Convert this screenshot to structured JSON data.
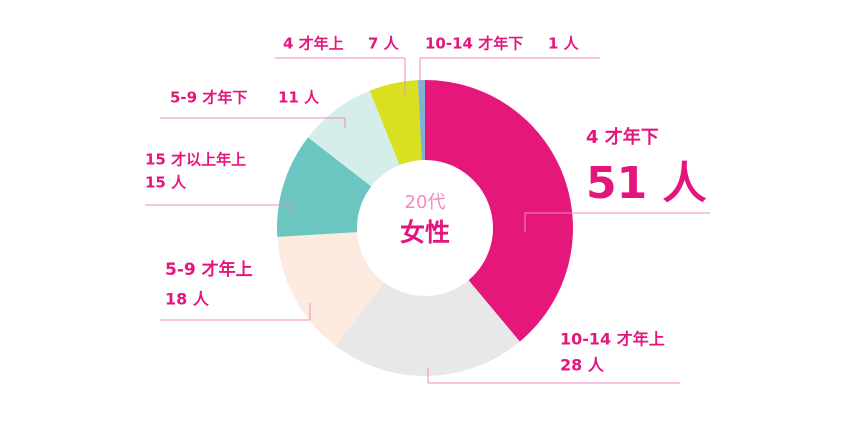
{
  "chart_data": {
    "type": "donut",
    "subtitle": "20代",
    "title": "女性",
    "categories": [
      "4 才年下",
      "10-14 才年上",
      "5-9 才年上",
      "15 才以上年上",
      "5-9 才年下",
      "4 才年上",
      "10-14 才年下"
    ],
    "values": [
      51,
      28,
      18,
      15,
      11,
      7,
      1
    ],
    "value_labels": [
      "51 人",
      "28 人",
      "18 人",
      "15 人",
      "11 人",
      "7 人",
      "1 人"
    ],
    "colors": [
      "#e5177b",
      "#e8e8e8",
      "#fdebe0",
      "#6bc6c1",
      "#d6eeeb",
      "#d9e021",
      "#7fb1d4"
    ]
  }
}
